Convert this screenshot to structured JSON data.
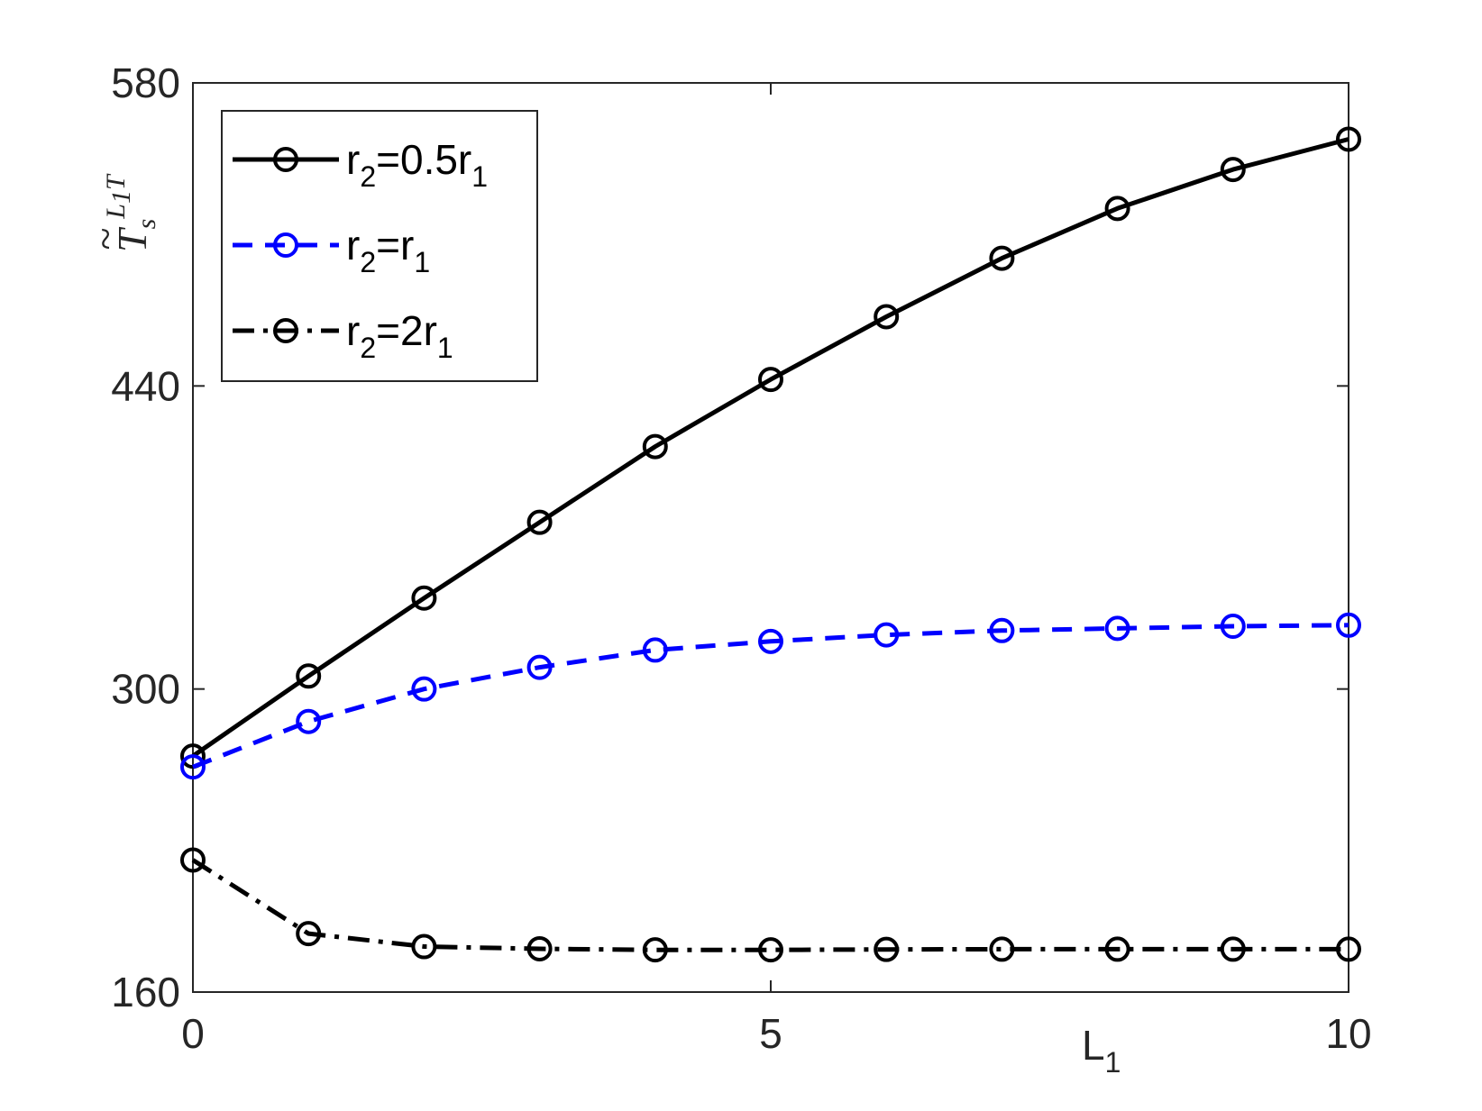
{
  "chart_data": {
    "type": "line",
    "title": "",
    "xlabel": {
      "main": "L",
      "sub": "1"
    },
    "ylabel": {
      "main": "T",
      "accent": "~",
      "sub": "s",
      "sup_main": "L",
      "sup_sub": "1",
      "sup_tail": "T"
    },
    "xlim": [
      0,
      10
    ],
    "ylim": [
      160,
      580
    ],
    "xticks": [
      0,
      5,
      10
    ],
    "yticks": [
      160,
      300,
      440,
      580
    ],
    "grid": false,
    "legend_position": "top-left",
    "x": [
      0,
      1,
      2,
      3,
      4,
      5,
      6,
      7,
      8,
      9,
      10
    ],
    "series": [
      {
        "label_main": "r",
        "label_sub1": "2",
        "label_mid": "=0.5r",
        "label_sub2": "1",
        "color": "#000000",
        "line_style": "solid",
        "marker": "circle",
        "values": [
          269,
          306,
          342,
          377,
          412,
          443,
          472,
          499,
          522,
          540,
          554
        ]
      },
      {
        "label_main": "r",
        "label_sub1": "2",
        "label_mid": "=r",
        "label_sub2": "1",
        "color": "#0000ff",
        "line_style": "dashed",
        "marker": "circle",
        "values": [
          264,
          285,
          300,
          310,
          318,
          322,
          325,
          327,
          328,
          329,
          329.5
        ]
      },
      {
        "label_main": "r",
        "label_sub1": "2",
        "label_mid": "=2r",
        "label_sub2": "1",
        "color": "#000000",
        "line_style": "dashdot",
        "marker": "circle",
        "values": [
          221,
          187,
          181,
          180,
          179.5,
          179.5,
          179.7,
          179.8,
          179.8,
          179.8,
          179.8
        ]
      }
    ]
  }
}
